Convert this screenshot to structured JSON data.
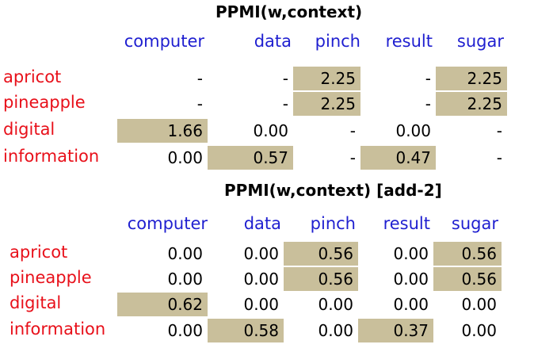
{
  "colors": {
    "column_header": "#1f1fd0",
    "row_label": "#e8101a",
    "highlight": "#c9bf9b"
  },
  "tables": [
    {
      "title": "PPMI(w,context)",
      "columns": [
        "computer",
        "data",
        "pinch",
        "result",
        "sugar"
      ],
      "rows": [
        {
          "label": "apricot",
          "cells": [
            {
              "value": "-",
              "highlight": false
            },
            {
              "value": "-",
              "highlight": false
            },
            {
              "value": "2.25",
              "highlight": true
            },
            {
              "value": "-",
              "highlight": false
            },
            {
              "value": "2.25",
              "highlight": true
            }
          ]
        },
        {
          "label": "pineapple",
          "cells": [
            {
              "value": "-",
              "highlight": false
            },
            {
              "value": "-",
              "highlight": false
            },
            {
              "value": "2.25",
              "highlight": true
            },
            {
              "value": "-",
              "highlight": false
            },
            {
              "value": "2.25",
              "highlight": true
            }
          ]
        },
        {
          "label": "digital",
          "cells": [
            {
              "value": "1.66",
              "highlight": true
            },
            {
              "value": "0.00",
              "highlight": false
            },
            {
              "value": "-",
              "highlight": false
            },
            {
              "value": "0.00",
              "highlight": false
            },
            {
              "value": "-",
              "highlight": false
            }
          ]
        },
        {
          "label": "information",
          "cells": [
            {
              "value": "0.00",
              "highlight": false
            },
            {
              "value": "0.57",
              "highlight": true
            },
            {
              "value": "-",
              "highlight": false
            },
            {
              "value": "0.47",
              "highlight": true
            },
            {
              "value": "-",
              "highlight": false
            }
          ]
        }
      ]
    },
    {
      "title": "PPMI(w,context) [add-2]",
      "columns": [
        "computer",
        "data",
        "pinch",
        "result",
        "sugar"
      ],
      "rows": [
        {
          "label": "apricot",
          "cells": [
            {
              "value": "0.00",
              "highlight": false
            },
            {
              "value": "0.00",
              "highlight": false
            },
            {
              "value": "0.56",
              "highlight": true
            },
            {
              "value": "0.00",
              "highlight": false
            },
            {
              "value": "0.56",
              "highlight": true
            }
          ]
        },
        {
          "label": "pineapple",
          "cells": [
            {
              "value": "0.00",
              "highlight": false
            },
            {
              "value": "0.00",
              "highlight": false
            },
            {
              "value": "0.56",
              "highlight": true
            },
            {
              "value": "0.00",
              "highlight": false
            },
            {
              "value": "0.56",
              "highlight": true
            }
          ]
        },
        {
          "label": "digital",
          "cells": [
            {
              "value": "0.62",
              "highlight": true
            },
            {
              "value": "0.00",
              "highlight": false
            },
            {
              "value": "0.00",
              "highlight": false
            },
            {
              "value": "0.00",
              "highlight": false
            },
            {
              "value": "0.00",
              "highlight": false
            }
          ]
        },
        {
          "label": "information",
          "cells": [
            {
              "value": "0.00",
              "highlight": false
            },
            {
              "value": "0.58",
              "highlight": true
            },
            {
              "value": "0.00",
              "highlight": false
            },
            {
              "value": "0.37",
              "highlight": true
            },
            {
              "value": "0.00",
              "highlight": false
            }
          ]
        }
      ]
    }
  ]
}
